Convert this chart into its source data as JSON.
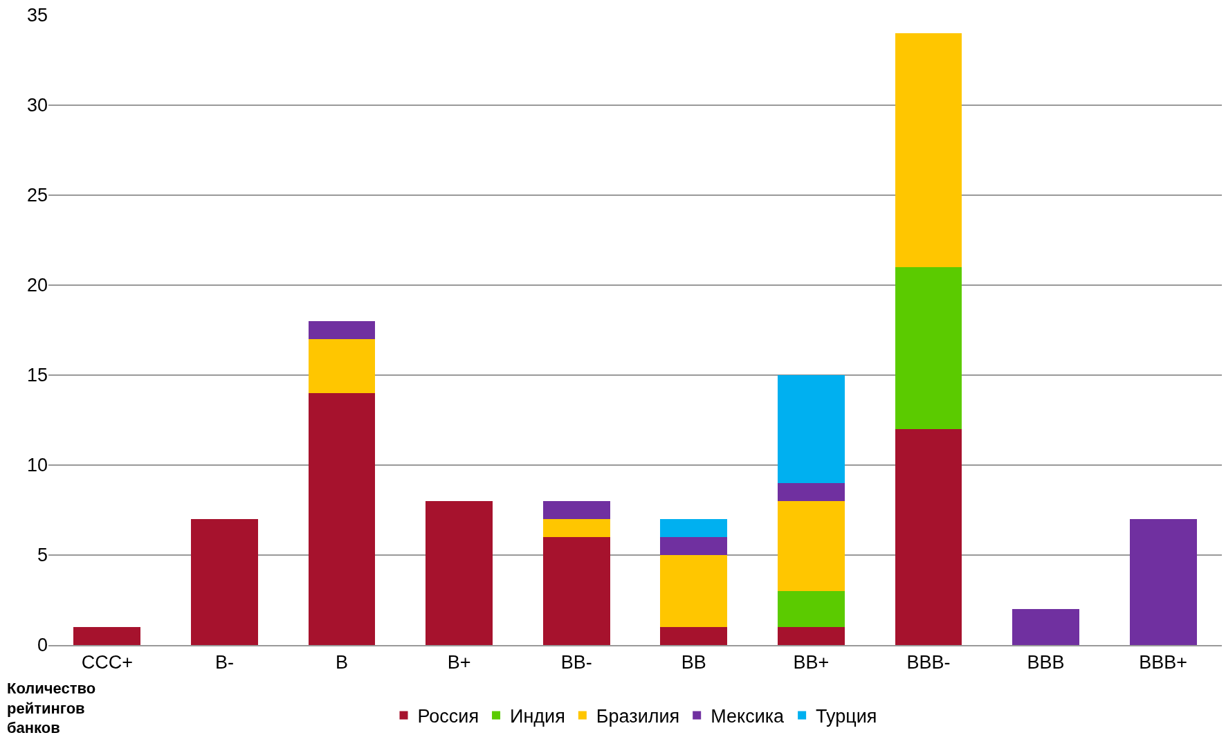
{
  "chart_data": {
    "type": "bar",
    "stacked": true,
    "ylabel": "Количество рейтингов банков",
    "categories": [
      "CCC+",
      "B-",
      "B",
      "B+",
      "BB-",
      "BB",
      "BB+",
      "BBB-",
      "BBB",
      "BBB+"
    ],
    "series": [
      {
        "name": "Россия",
        "color": "#a6122d",
        "values": [
          1,
          7,
          14,
          8,
          6,
          1,
          1,
          12,
          null,
          null
        ]
      },
      {
        "name": "Индия",
        "color": "#5bcb00",
        "values": [
          null,
          null,
          null,
          null,
          null,
          null,
          2,
          9,
          null,
          null
        ]
      },
      {
        "name": "Бразилия",
        "color": "#ffc600",
        "values": [
          null,
          null,
          3,
          null,
          1,
          4,
          5,
          13,
          null,
          null
        ]
      },
      {
        "name": "Мексика",
        "color": "#7030a0",
        "values": [
          null,
          null,
          1,
          null,
          1,
          1,
          1,
          null,
          2,
          7
        ]
      },
      {
        "name": "Турция",
        "color": "#00b0f0",
        "values": [
          null,
          null,
          null,
          null,
          null,
          1,
          6,
          null,
          null,
          null
        ]
      }
    ],
    "ylim": [
      0,
      35
    ],
    "yticks": [
      0,
      5,
      10,
      15,
      20,
      25,
      30,
      35
    ],
    "grid": "y",
    "legend": "bottom"
  }
}
